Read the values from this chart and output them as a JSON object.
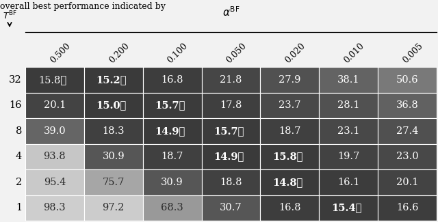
{
  "row_labels": [
    "32",
    "16",
    "8",
    "4",
    "2",
    "1"
  ],
  "col_labels": [
    "0.500",
    "0.200",
    "0.100",
    "0.050",
    "0.020",
    "0.010",
    "0.005"
  ],
  "values": [
    [
      15.8,
      15.2,
      16.8,
      21.8,
      27.9,
      38.1,
      50.6
    ],
    [
      20.1,
      15.0,
      15.7,
      17.8,
      23.7,
      28.1,
      36.8
    ],
    [
      39.0,
      18.3,
      14.9,
      15.7,
      18.7,
      23.1,
      27.4
    ],
    [
      93.8,
      30.9,
      18.7,
      14.9,
      15.8,
      19.7,
      23.0
    ],
    [
      95.4,
      75.7,
      30.9,
      18.8,
      14.8,
      16.1,
      20.1
    ],
    [
      98.3,
      97.2,
      68.3,
      30.7,
      16.8,
      15.4,
      16.6
    ]
  ],
  "bold_star": [
    [
      false,
      true,
      false,
      false,
      false,
      false,
      false
    ],
    [
      false,
      true,
      true,
      false,
      false,
      false,
      false
    ],
    [
      false,
      false,
      true,
      true,
      false,
      false,
      false
    ],
    [
      false,
      false,
      false,
      true,
      true,
      false,
      false
    ],
    [
      false,
      false,
      false,
      false,
      true,
      false,
      false
    ],
    [
      false,
      false,
      false,
      false,
      false,
      true,
      false
    ]
  ],
  "outline_star": [
    [
      true,
      false,
      false,
      false,
      false,
      false,
      false
    ],
    [
      false,
      false,
      false,
      false,
      false,
      false,
      false
    ],
    [
      false,
      false,
      false,
      false,
      false,
      false,
      false
    ],
    [
      false,
      false,
      false,
      false,
      false,
      false,
      false
    ],
    [
      false,
      false,
      false,
      false,
      false,
      false,
      false
    ],
    [
      false,
      false,
      false,
      false,
      false,
      false,
      false
    ]
  ],
  "filled_star": [
    [
      false,
      false,
      false,
      false,
      false,
      false,
      false
    ],
    [
      false,
      false,
      false,
      false,
      false,
      false,
      false
    ],
    [
      false,
      false,
      false,
      false,
      false,
      false,
      false
    ],
    [
      false,
      false,
      false,
      false,
      false,
      false,
      false
    ],
    [
      false,
      false,
      false,
      false,
      true,
      false,
      false
    ],
    [
      false,
      false,
      false,
      false,
      false,
      false,
      false
    ]
  ],
  "vmin": 14.0,
  "vmax": 100.0,
  "dark_gray": 0.22,
  "light_gray": 0.82,
  "cell_text_color_dark": "white",
  "cell_text_color_light": "#333333",
  "threshold": 0.5,
  "top_text": "overall best performance indicated by    are marked with   .",
  "fig_bg": "#f2f2f2"
}
